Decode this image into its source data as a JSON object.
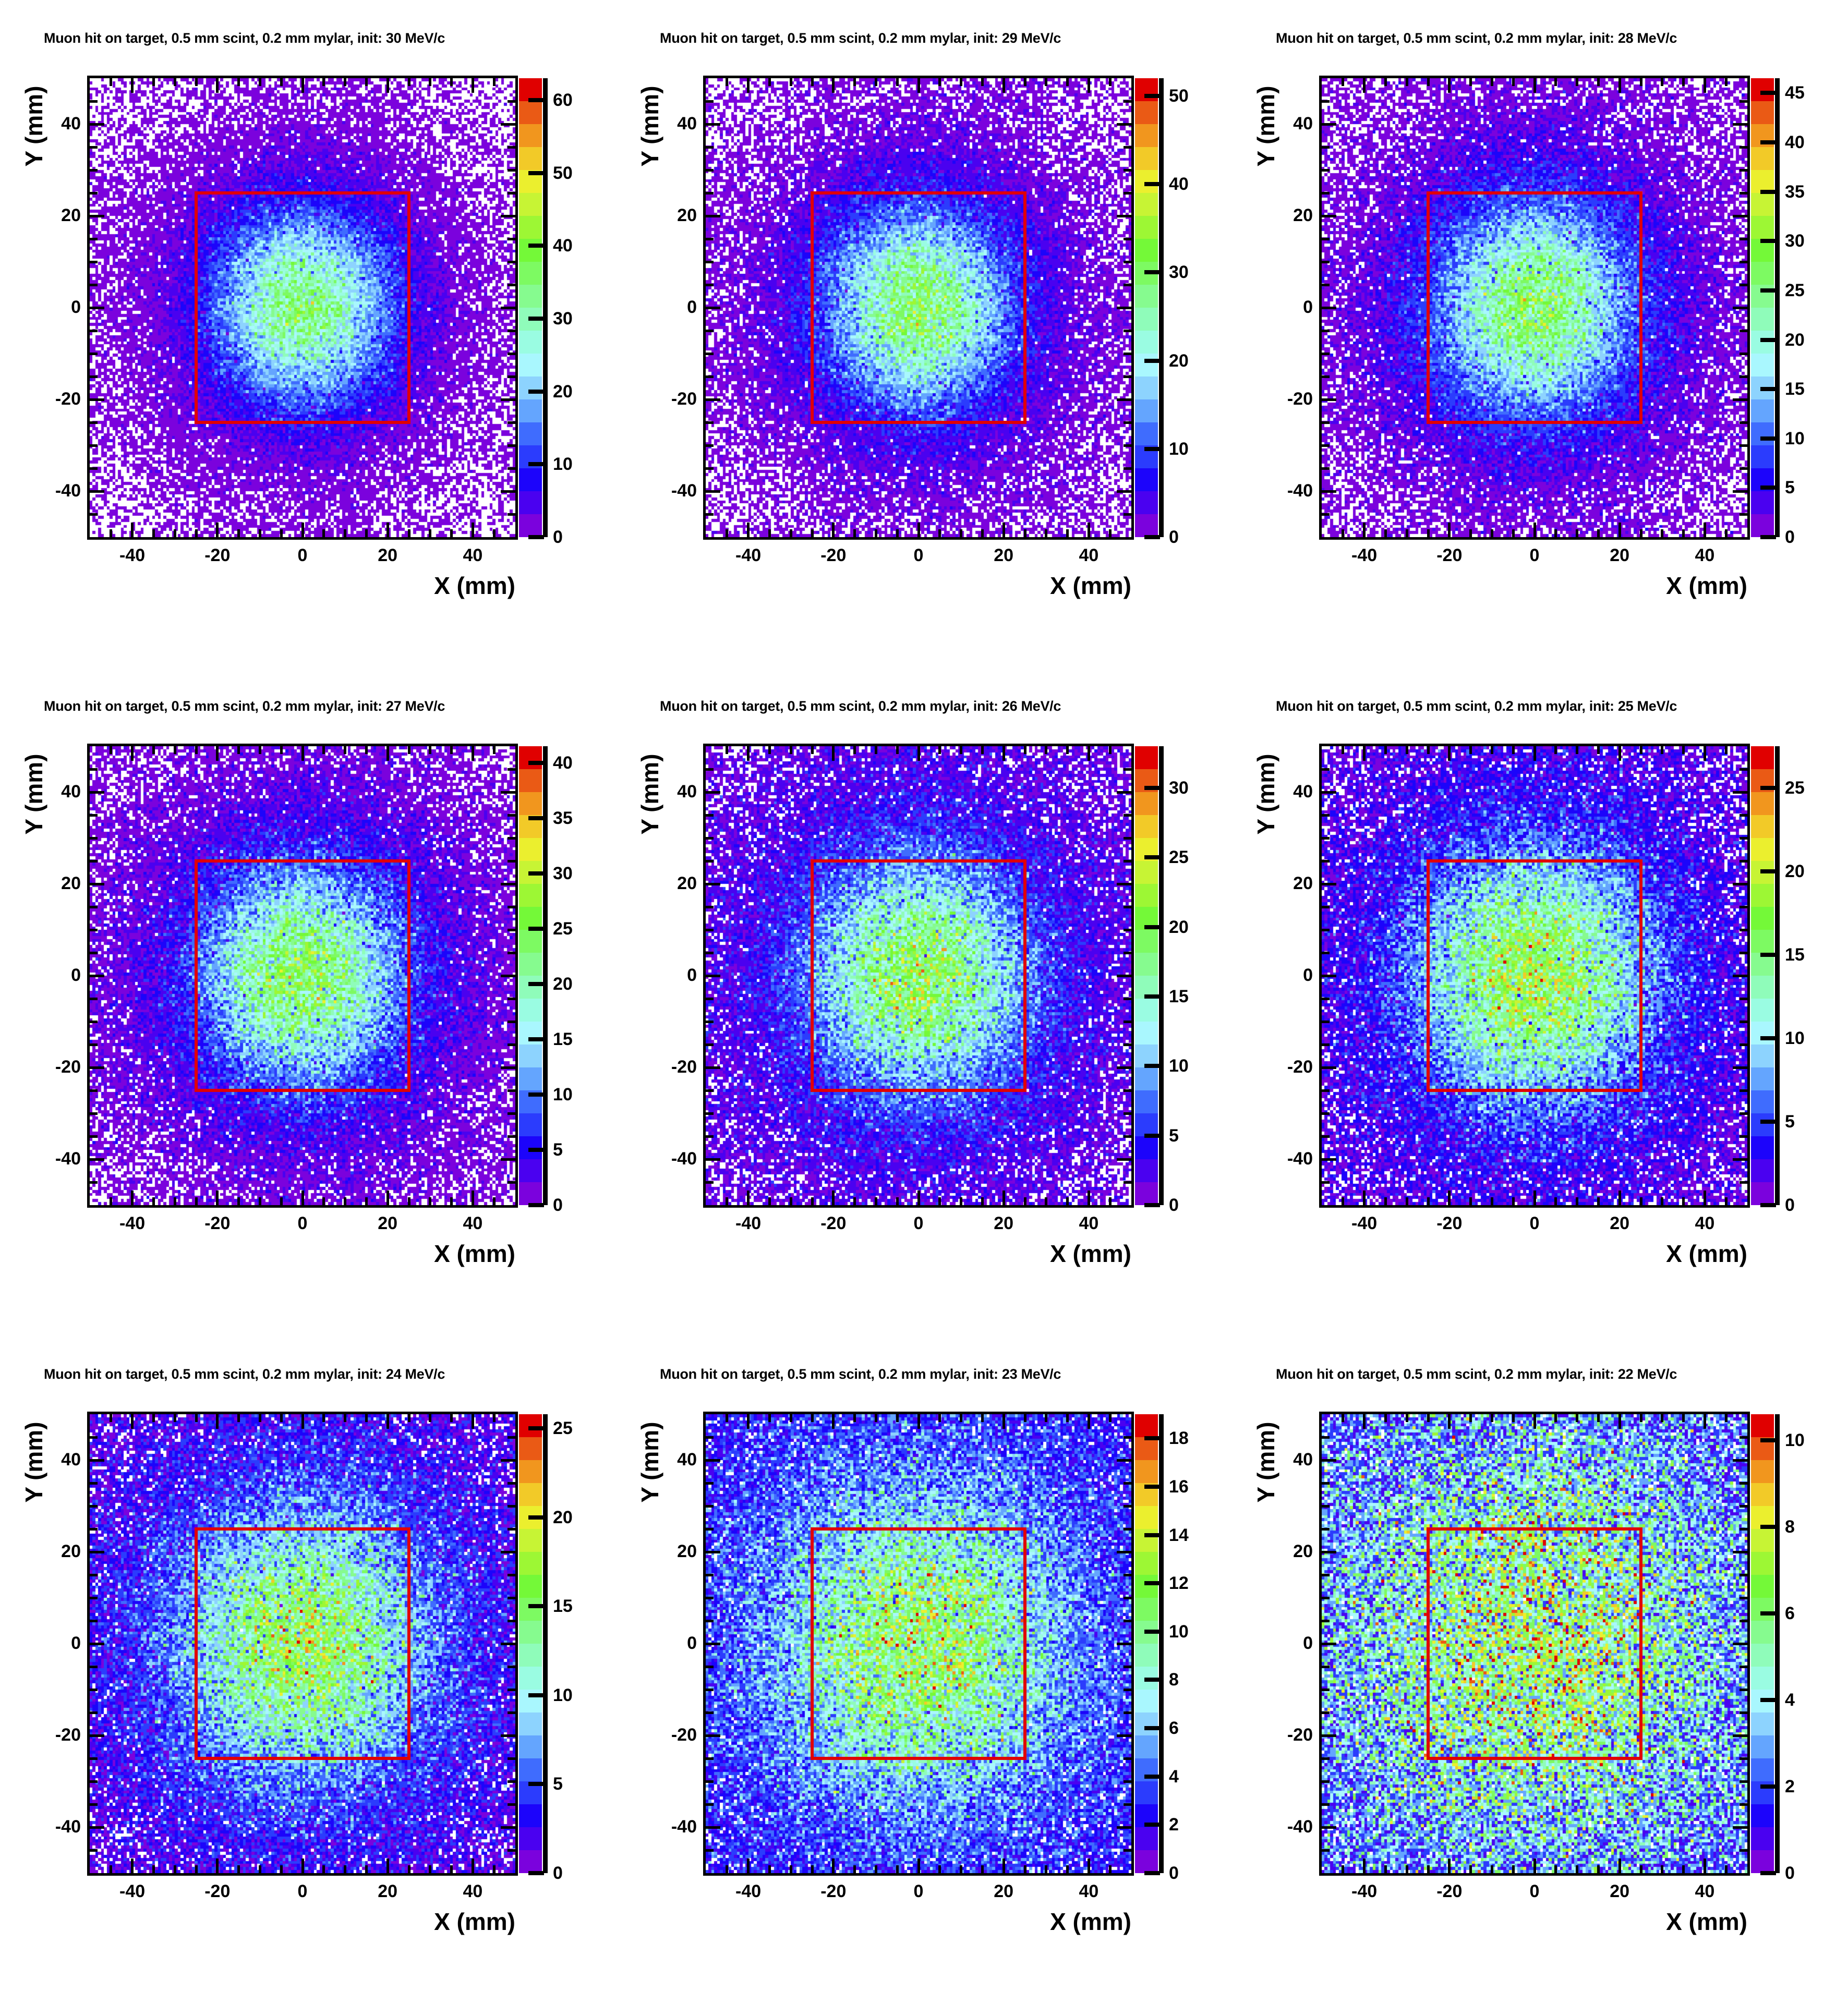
{
  "page": {
    "background": "#ffffff"
  },
  "axes": {
    "x_label": "X (mm)",
    "y_label": "Y (mm)",
    "x_range": [
      -50,
      50
    ],
    "y_range": [
      -50,
      50
    ],
    "minor_tick_step_mm": 5
  },
  "overlay_box": {
    "x_min_mm": -25,
    "x_max_mm": 25,
    "y_min_mm": -25,
    "y_max_mm": 25,
    "color": "#e10000"
  },
  "palette": [
    "#7b02dd",
    "#4a01f0",
    "#1c04fb",
    "#2b3cfd",
    "#3f6cfe",
    "#64a5fe",
    "#8dd3fe",
    "#a9f7fe",
    "#9afce2",
    "#8ffcba",
    "#86fb8f",
    "#7dfa62",
    "#74f938",
    "#9df734",
    "#c7f434",
    "#ebef2e",
    "#f2ca28",
    "#f1961e",
    "#ea5a15",
    "#e00000"
  ],
  "zero_bin_color": "#ffffff",
  "chart_data": [
    {
      "type": "heatmap",
      "title": "Muon hit on target, 0.5 mm scint, 0.2 mm mylar, init: 30 MeV/c",
      "momentum_label": "30 MeV/c",
      "x_ticks": [
        -40,
        -20,
        0,
        20,
        40
      ],
      "y_ticks": [
        40,
        20,
        0,
        -20,
        -40
      ],
      "zmax": 63,
      "colorbar_ticks": [
        0,
        10,
        20,
        30,
        40,
        50,
        60
      ],
      "bins": [
        150,
        150
      ],
      "distribution_model": {
        "core_amplitude": 32,
        "core_sigma_mm": 14,
        "halo_amplitude": 2.2,
        "halo_sigma_mm": 38,
        "seed": 11
      }
    },
    {
      "type": "heatmap",
      "title": "Muon hit on target, 0.5 mm scint, 0.2 mm mylar, init: 29 MeV/c",
      "momentum_label": "29 MeV/c",
      "x_ticks": [
        -40,
        -20,
        0,
        20,
        40
      ],
      "y_ticks": [
        40,
        20,
        0,
        -20,
        -40
      ],
      "zmax": 52,
      "colorbar_ticks": [
        0,
        10,
        20,
        30,
        40,
        50
      ],
      "bins": [
        150,
        150
      ],
      "distribution_model": {
        "core_amplitude": 27,
        "core_sigma_mm": 14.5,
        "halo_amplitude": 2.4,
        "halo_sigma_mm": 40,
        "seed": 22
      }
    },
    {
      "type": "heatmap",
      "title": "Muon hit on target, 0.5 mm scint, 0.2 mm mylar, init: 28 MeV/c",
      "momentum_label": "28 MeV/c",
      "x_ticks": [
        -40,
        -20,
        0,
        20,
        40
      ],
      "y_ticks": [
        40,
        20,
        0,
        -20,
        -40
      ],
      "zmax": 46.5,
      "colorbar_ticks": [
        0,
        5,
        10,
        15,
        20,
        25,
        30,
        35,
        40,
        45
      ],
      "bins": [
        150,
        150
      ],
      "distribution_model": {
        "core_amplitude": 24,
        "core_sigma_mm": 15.5,
        "halo_amplitude": 2.6,
        "halo_sigma_mm": 42,
        "seed": 33
      }
    },
    {
      "type": "heatmap",
      "title": "Muon hit on target, 0.5 mm scint, 0.2 mm mylar, init: 27 MeV/c",
      "momentum_label": "27 MeV/c",
      "x_ticks": [
        -40,
        -20,
        0,
        20,
        40
      ],
      "y_ticks": [
        40,
        20,
        0,
        -20,
        -40
      ],
      "zmax": 41.5,
      "colorbar_ticks": [
        0,
        5,
        10,
        15,
        20,
        25,
        30,
        35,
        40
      ],
      "bins": [
        150,
        150
      ],
      "distribution_model": {
        "core_amplitude": 21.5,
        "core_sigma_mm": 16,
        "halo_amplitude": 2.8,
        "halo_sigma_mm": 44,
        "seed": 44
      }
    },
    {
      "type": "heatmap",
      "title": "Muon hit on target, 0.5 mm scint, 0.2 mm mylar, init: 26 MeV/c",
      "momentum_label": "26 MeV/c",
      "x_ticks": [
        -40,
        -20,
        0,
        20,
        40
      ],
      "y_ticks": [
        40,
        20,
        0,
        -20,
        -40
      ],
      "zmax": 33,
      "colorbar_ticks": [
        0,
        5,
        10,
        15,
        20,
        25,
        30
      ],
      "bins": [
        150,
        150
      ],
      "distribution_model": {
        "core_amplitude": 17,
        "core_sigma_mm": 17,
        "halo_amplitude": 3.0,
        "halo_sigma_mm": 46,
        "seed": 55
      }
    },
    {
      "type": "heatmap",
      "title": "Muon hit on target, 0.5 mm scint, 0.2 mm mylar, init: 25 MeV/c",
      "momentum_label": "25 MeV/c",
      "x_ticks": [
        -40,
        -20,
        0,
        20,
        40
      ],
      "y_ticks": [
        40,
        20,
        0,
        -20,
        -40
      ],
      "zmax": 27.5,
      "colorbar_ticks": [
        0,
        5,
        10,
        15,
        20,
        25
      ],
      "bins": [
        150,
        150
      ],
      "distribution_model": {
        "core_amplitude": 14.5,
        "core_sigma_mm": 18,
        "halo_amplitude": 3.2,
        "halo_sigma_mm": 48,
        "seed": 66
      }
    },
    {
      "type": "heatmap",
      "title": "Muon hit on target, 0.5 mm scint, 0.2 mm mylar, init: 24 MeV/c",
      "momentum_label": "24 MeV/c",
      "x_ticks": [
        -40,
        -20,
        0,
        20,
        40
      ],
      "y_ticks": [
        40,
        20,
        0,
        -20,
        -40
      ],
      "zmax": 25.8,
      "colorbar_ticks": [
        0,
        5,
        10,
        15,
        20,
        25
      ],
      "bins": [
        150,
        150
      ],
      "distribution_model": {
        "core_amplitude": 12.5,
        "core_sigma_mm": 19.5,
        "halo_amplitude": 3.4,
        "halo_sigma_mm": 52,
        "seed": 77
      }
    },
    {
      "type": "heatmap",
      "title": "Muon hit on target, 0.5 mm scint, 0.2 mm mylar, init: 23 MeV/c",
      "momentum_label": "23 MeV/c",
      "x_ticks": [
        -40,
        -20,
        0,
        20,
        40
      ],
      "y_ticks": [
        40,
        20,
        0,
        -20,
        -40
      ],
      "zmax": 19,
      "colorbar_ticks": [
        0,
        2,
        4,
        6,
        8,
        10,
        12,
        14,
        16,
        18
      ],
      "bins": [
        150,
        150
      ],
      "distribution_model": {
        "core_amplitude": 8,
        "core_sigma_mm": 22,
        "halo_amplitude": 3.5,
        "halo_sigma_mm": 60,
        "seed": 88
      }
    },
    {
      "type": "heatmap",
      "title": "Muon hit on target, 0.5 mm scint, 0.2 mm mylar, init: 22 MeV/c",
      "momentum_label": "22 MeV/c",
      "x_ticks": [
        -40,
        -20,
        0,
        20,
        40
      ],
      "y_ticks": [
        40,
        20,
        0,
        -20,
        -40
      ],
      "zmax": 10.6,
      "colorbar_ticks": [
        0,
        2,
        4,
        6,
        8,
        10
      ],
      "bins": [
        150,
        150
      ],
      "distribution_model": {
        "core_amplitude": 3.6,
        "core_sigma_mm": 30,
        "halo_amplitude": 2.6,
        "halo_sigma_mm": 80,
        "seed": 99
      }
    }
  ]
}
